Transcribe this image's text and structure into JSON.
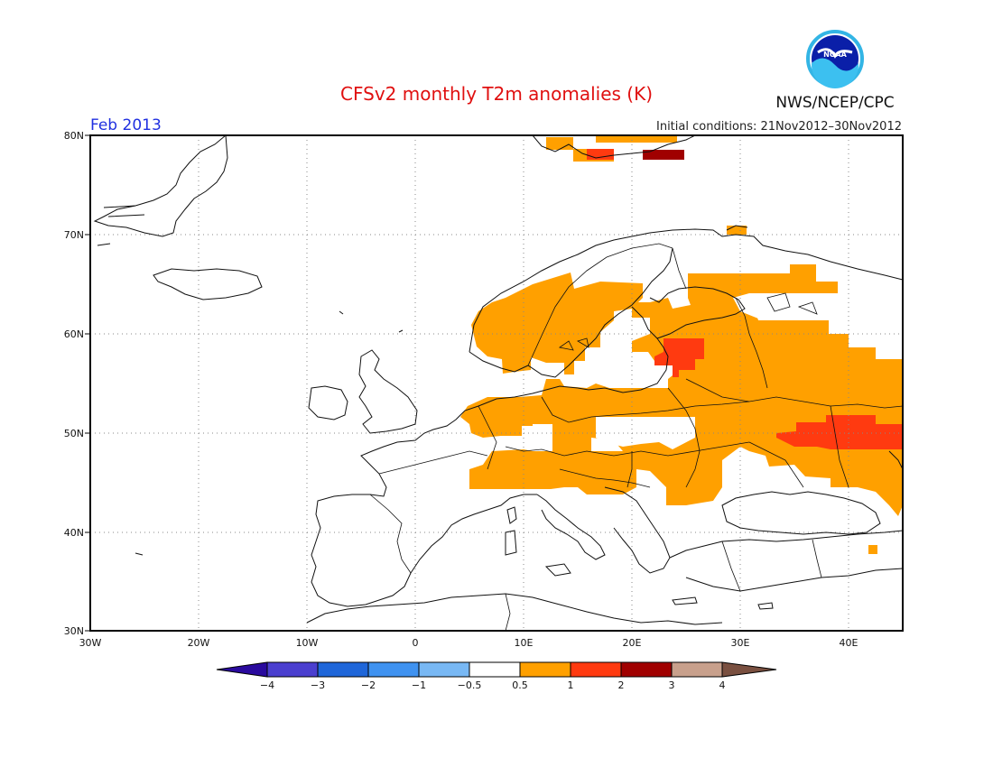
{
  "header": {
    "title": "CFSv2 monthly T2m anomalies (K)",
    "valid_month": "Feb 2013",
    "initial_conditions": "Initial conditions: 21Nov2012–30Nov2012",
    "agency": "NWS/NCEP/CPC",
    "logo_text": "NOAA"
  },
  "map": {
    "lat_labels": [
      "80N",
      "70N",
      "60N",
      "50N",
      "40N",
      "30N"
    ],
    "lon_labels": [
      "30W",
      "20W",
      "10W",
      "0",
      "10E",
      "20E",
      "30E",
      "40E"
    ],
    "extent": {
      "lon_min": -30,
      "lon_max": 45,
      "lat_min": 30,
      "lat_max": 80
    },
    "gridlines": true
  },
  "legend": {
    "labels": [
      "−4",
      "−3",
      "−2",
      "−1",
      "−0.5",
      "0.5",
      "1",
      "2",
      "3",
      "4"
    ],
    "colors": [
      "#2a0a9e",
      "#4b3fcf",
      "#1f66d9",
      "#3f92f0",
      "#78b8f4",
      "#ffffff",
      "#ffa000",
      "#ff3a10",
      "#a00000",
      "#c8a08c",
      "#7a5040"
    ]
  },
  "anomaly_colors": {
    "warm_05_1": "#ffa000",
    "warm_1_2": "#ff3a10",
    "warm_2_3": "#a00000"
  }
}
